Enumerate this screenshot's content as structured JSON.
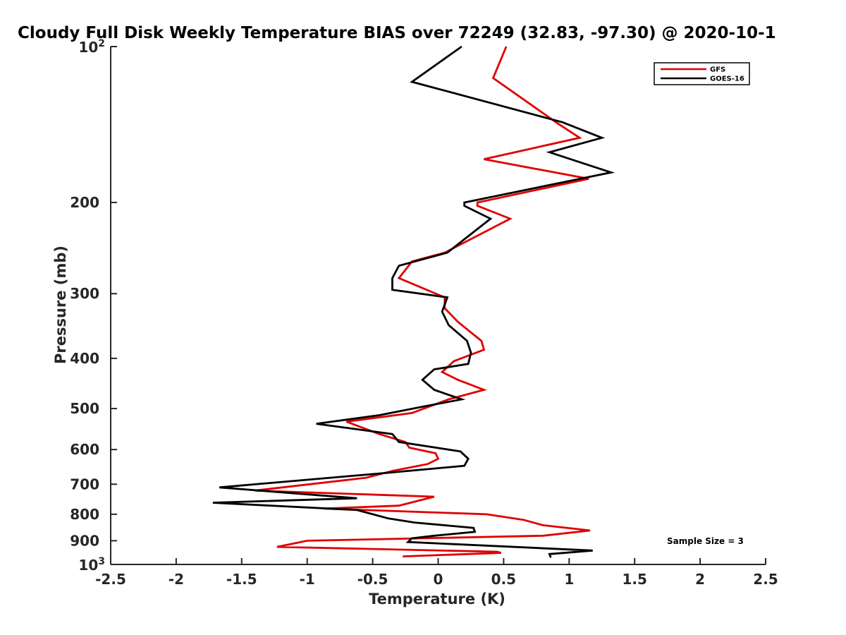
{
  "chart_data": {
    "type": "line",
    "title": "Cloudy Full Disk Weekly Temperature BIAS over 72249 (32.83, -97.30) @ 2020-10-1",
    "xlabel": "Temperature (K)",
    "ylabel": "Pressure (mb)",
    "xlim": [
      -2.5,
      2.5
    ],
    "ylim": [
      100,
      1000
    ],
    "yscale": "log",
    "y_reversed": true,
    "x_ticks": [
      "-2.5",
      "-2",
      "-1.5",
      "-1",
      "-0.5",
      "0",
      "0.5",
      "1",
      "1.5",
      "2",
      "2.5"
    ],
    "y_ticks": [
      {
        "value": 100,
        "base": "10",
        "exp": "2"
      },
      {
        "value": 200,
        "label": "200"
      },
      {
        "value": 300,
        "label": "300"
      },
      {
        "value": 400,
        "label": "400"
      },
      {
        "value": 500,
        "label": "500"
      },
      {
        "value": 600,
        "label": "600"
      },
      {
        "value": 700,
        "label": "700"
      },
      {
        "value": 800,
        "label": "800"
      },
      {
        "value": 900,
        "label": "900"
      },
      {
        "value": 1000,
        "base": "10",
        "exp": "3"
      }
    ],
    "grid": false,
    "legend_position": "top-right",
    "annotation": "Sample Size = 3",
    "series": [
      {
        "name": "GFS",
        "color": "#e00000",
        "x": [
          0.52,
          0.42,
          0.9,
          1.08,
          0.35,
          1.15,
          0.3,
          0.3,
          0.55,
          0.05,
          -0.2,
          -0.25,
          -0.3,
          0.05,
          0.05,
          0.15,
          0.33,
          0.35,
          0.12,
          0.03,
          0.15,
          0.35,
          0.08,
          -0.2,
          -0.7,
          -0.45,
          -0.25,
          -0.22,
          -0.02,
          0.0,
          -0.08,
          -0.35,
          -0.55,
          -1.4,
          -0.03,
          -0.3,
          -0.87,
          0.37,
          0.65,
          0.8,
          1.16,
          0.8,
          -1.0,
          -1.23,
          0.45,
          0.48,
          -0.27
        ],
        "y": [
          100,
          115,
          140,
          150,
          165,
          180,
          200,
          203,
          215,
          250,
          260,
          270,
          280,
          305,
          320,
          340,
          370,
          385,
          405,
          425,
          440,
          460,
          480,
          510,
          530,
          560,
          580,
          595,
          610,
          625,
          640,
          660,
          680,
          720,
          740,
          770,
          780,
          800,
          820,
          840,
          860,
          880,
          900,
          925,
          945,
          950,
          965
        ]
      },
      {
        "name": "GOES-16",
        "color": "#000000",
        "x": [
          0.18,
          -0.2,
          0.95,
          1.25,
          0.85,
          1.32,
          0.2,
          0.2,
          0.4,
          0.07,
          -0.3,
          -0.35,
          -0.35,
          0.07,
          0.03,
          0.08,
          0.22,
          0.25,
          0.23,
          -0.03,
          -0.12,
          -0.03,
          0.18,
          -0.1,
          -0.45,
          -0.93,
          -0.35,
          -0.3,
          0.17,
          0.23,
          0.2,
          -0.38,
          -1.67,
          -0.62,
          -1.72,
          -0.62,
          -0.38,
          -0.18,
          0.27,
          0.28,
          -0.03,
          -0.2,
          -0.23,
          1.18,
          0.85,
          0.86
        ],
        "y": [
          100,
          117,
          140,
          150,
          160,
          175,
          200,
          203,
          215,
          250,
          265,
          280,
          295,
          305,
          325,
          345,
          370,
          390,
          410,
          420,
          440,
          460,
          480,
          495,
          515,
          535,
          560,
          580,
          605,
          625,
          645,
          665,
          710,
          745,
          760,
          785,
          815,
          830,
          850,
          865,
          880,
          890,
          905,
          940,
          955,
          970
        ]
      }
    ]
  }
}
